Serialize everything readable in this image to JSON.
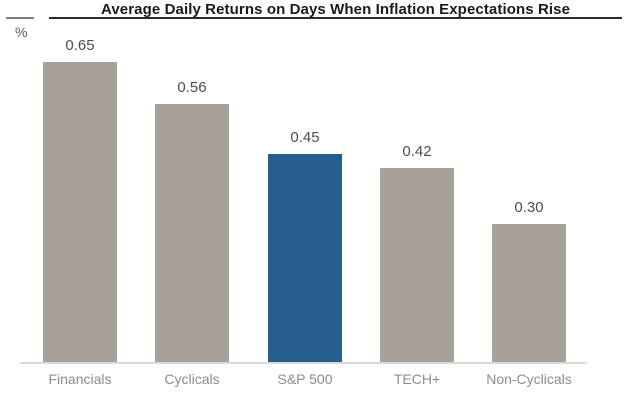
{
  "header": {
    "title": "Average Daily Returns on Days When Inflation Expectations Rise",
    "unit_label": "%"
  },
  "chart_data": {
    "type": "bar",
    "title": "Average Daily Returns on Days When Inflation Expectations Rise",
    "categories": [
      "Financials",
      "Cyclicals",
      "S&P 500",
      "TECH+",
      "Non-Cyclicals"
    ],
    "values": [
      0.65,
      0.56,
      0.45,
      0.42,
      0.3
    ],
    "value_labels": [
      "0.65",
      "0.56",
      "0.45",
      "0.42",
      "0.30"
    ],
    "xlabel": "",
    "ylabel": "%",
    "ylim": [
      0,
      0.7
    ],
    "grid": false,
    "legend": false,
    "highlight_category": "S&P 500",
    "colors": {
      "bar_default": "#a8a19a",
      "bar_highlight": "#255e8c",
      "value_label": "#4d4d4d",
      "category_label": "#8c8c8c",
      "title": "#1a1a1a",
      "title_rule": "#2b2b2b",
      "axis_tick": "#7f7f7f",
      "baseline": "#d9d9d9",
      "background": "#ffffff"
    }
  }
}
